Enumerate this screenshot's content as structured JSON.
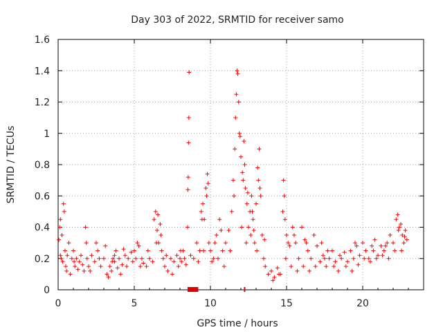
{
  "chart_data": {
    "type": "scatter",
    "title": "Day 303 of 2022, SRMTID for receiver samo",
    "xlabel": "GPS time / hours",
    "ylabel": "SRMTID / TECUs",
    "xlim": [
      0,
      24
    ],
    "ylim": [
      0,
      1.6
    ],
    "x_ticks": [
      0,
      5,
      10,
      15,
      20
    ],
    "x_tick_labels": [
      "0",
      "5",
      "10",
      "15",
      "20"
    ],
    "y_ticks": [
      0,
      0.2,
      0.4,
      0.6,
      0.8,
      1.0,
      1.2,
      1.4,
      1.6
    ],
    "y_tick_labels": [
      "0",
      "0.2",
      "0.4",
      "0.6",
      "0.8",
      "1",
      "1.2",
      "1.4",
      "1.6"
    ],
    "grid": true,
    "marker": "+",
    "marker_color": "#ff0000",
    "series": [
      {
        "name": "SRMTID",
        "points": [
          [
            0.05,
            0.32
          ],
          [
            0.1,
            0.4
          ],
          [
            0.15,
            0.45
          ],
          [
            0.2,
            0.2
          ],
          [
            0.25,
            0.35
          ],
          [
            0.3,
            0.18
          ],
          [
            0.35,
            0.55
          ],
          [
            0.4,
            0.5
          ],
          [
            0.45,
            0.25
          ],
          [
            0.5,
            0.15
          ],
          [
            0.6,
            0.22
          ],
          [
            0.7,
            0.3
          ],
          [
            0.8,
            0.1
          ],
          [
            0.9,
            0.2
          ],
          [
            1.0,
            0.25
          ],
          [
            1.1,
            0.15
          ],
          [
            1.2,
            0.2
          ],
          [
            1.3,
            0.13
          ],
          [
            1.4,
            0.18
          ],
          [
            1.5,
            0.22
          ],
          [
            1.6,
            0.16
          ],
          [
            1.7,
            0.12
          ],
          [
            1.8,
            0.4
          ],
          [
            1.85,
            0.3
          ],
          [
            1.9,
            0.2
          ],
          [
            2.0,
            0.15
          ],
          [
            2.2,
            0.22
          ],
          [
            2.4,
            0.18
          ],
          [
            2.6,
            0.25
          ],
          [
            2.8,
            0.15
          ],
          [
            3.0,
            0.2
          ],
          [
            3.1,
            0.28
          ],
          [
            3.2,
            0.1
          ],
          [
            3.3,
            0.08
          ],
          [
            3.4,
            0.15
          ],
          [
            3.5,
            0.12
          ],
          [
            3.6,
            0.2
          ],
          [
            3.7,
            0.18
          ],
          [
            3.8,
            0.25
          ],
          [
            3.9,
            0.14
          ],
          [
            4.0,
            0.2
          ],
          [
            4.2,
            0.16
          ],
          [
            4.4,
            0.22
          ],
          [
            4.6,
            0.2
          ],
          [
            4.8,
            0.24
          ],
          [
            5.0,
            0.25
          ],
          [
            5.2,
            0.3
          ],
          [
            5.3,
            0.28
          ],
          [
            5.4,
            0.15
          ],
          [
            5.6,
            0.17
          ],
          [
            5.8,
            0.15
          ],
          [
            6.0,
            0.2
          ],
          [
            6.2,
            0.18
          ],
          [
            6.3,
            0.45
          ],
          [
            6.4,
            0.5
          ],
          [
            6.5,
            0.38
          ],
          [
            6.6,
            0.3
          ],
          [
            6.7,
            0.42
          ],
          [
            6.8,
            0.25
          ],
          [
            6.9,
            0.2
          ],
          [
            7.0,
            0.15
          ],
          [
            7.2,
            0.12
          ],
          [
            7.4,
            0.2
          ],
          [
            7.6,
            0.18
          ],
          [
            7.8,
            0.22
          ],
          [
            8.0,
            0.2
          ],
          [
            8.2,
            0.25
          ],
          [
            8.3,
            0.2
          ],
          [
            8.4,
            0.16
          ],
          [
            8.5,
            0.4
          ],
          [
            8.52,
            0.64
          ],
          [
            8.54,
            0.72
          ],
          [
            8.56,
            0.94
          ],
          [
            8.58,
            1.1
          ],
          [
            8.6,
            1.39
          ],
          [
            8.7,
            0.22
          ],
          [
            8.9,
            0.2
          ],
          [
            9.1,
            0.3
          ],
          [
            9.3,
            0.25
          ],
          [
            9.4,
            0.5
          ],
          [
            9.5,
            0.55
          ],
          [
            9.6,
            0.45
          ],
          [
            9.7,
            0.65
          ],
          [
            9.8,
            0.74
          ],
          [
            9.9,
            0.3
          ],
          [
            10.0,
            0.25
          ],
          [
            10.2,
            0.2
          ],
          [
            10.4,
            0.35
          ],
          [
            10.6,
            0.45
          ],
          [
            10.8,
            0.25
          ],
          [
            11.0,
            0.3
          ],
          [
            11.2,
            0.38
          ],
          [
            11.4,
            0.5
          ],
          [
            11.5,
            0.7
          ],
          [
            11.6,
            0.9
          ],
          [
            11.65,
            1.1
          ],
          [
            11.7,
            1.25
          ],
          [
            11.75,
            1.4
          ],
          [
            11.8,
            1.38
          ],
          [
            11.85,
            1.2
          ],
          [
            11.9,
            1.0
          ],
          [
            12.0,
            0.85
          ],
          [
            12.1,
            0.75
          ],
          [
            12.2,
            0.95
          ],
          [
            12.3,
            0.65
          ],
          [
            12.4,
            0.55
          ],
          [
            12.5,
            0.4
          ],
          [
            12.6,
            0.5
          ],
          [
            12.7,
            0.6
          ],
          [
            12.8,
            0.45
          ],
          [
            12.9,
            0.3
          ],
          [
            13.0,
            0.55
          ],
          [
            13.1,
            0.78
          ],
          [
            13.2,
            0.9
          ],
          [
            13.3,
            0.6
          ],
          [
            13.4,
            0.35
          ],
          [
            13.5,
            0.2
          ],
          [
            13.6,
            0.15
          ],
          [
            13.8,
            0.1
          ],
          [
            14.0,
            0.12
          ],
          [
            14.2,
            0.08
          ],
          [
            14.4,
            0.14
          ],
          [
            14.6,
            0.1
          ],
          [
            14.8,
            0.7
          ],
          [
            14.85,
            0.6
          ],
          [
            14.9,
            0.45
          ],
          [
            15.0,
            0.35
          ],
          [
            15.2,
            0.28
          ],
          [
            15.4,
            0.4
          ],
          [
            15.6,
            0.3
          ],
          [
            15.8,
            0.2
          ],
          [
            16.0,
            0.4
          ],
          [
            16.2,
            0.32
          ],
          [
            16.4,
            0.25
          ],
          [
            16.6,
            0.2
          ],
          [
            16.8,
            0.35
          ],
          [
            17.0,
            0.28
          ],
          [
            17.2,
            0.18
          ],
          [
            17.4,
            0.22
          ],
          [
            17.6,
            0.15
          ],
          [
            17.8,
            0.2
          ],
          [
            18.0,
            0.25
          ],
          [
            18.2,
            0.18
          ],
          [
            18.4,
            0.12
          ],
          [
            18.6,
            0.2
          ],
          [
            18.8,
            0.24
          ],
          [
            19.0,
            0.18
          ],
          [
            19.2,
            0.25
          ],
          [
            19.4,
            0.2
          ],
          [
            19.6,
            0.28
          ],
          [
            19.8,
            0.22
          ],
          [
            20.0,
            0.3
          ],
          [
            20.2,
            0.25
          ],
          [
            20.4,
            0.2
          ],
          [
            20.6,
            0.28
          ],
          [
            20.8,
            0.32
          ],
          [
            21.0,
            0.22
          ],
          [
            21.2,
            0.28
          ],
          [
            21.4,
            0.25
          ],
          [
            21.6,
            0.3
          ],
          [
            21.8,
            0.35
          ],
          [
            22.0,
            0.3
          ],
          [
            22.2,
            0.45
          ],
          [
            22.3,
            0.48
          ],
          [
            22.4,
            0.4
          ],
          [
            22.5,
            0.42
          ],
          [
            22.6,
            0.35
          ],
          [
            22.7,
            0.3
          ],
          [
            22.8,
            0.38
          ],
          [
            22.9,
            0.32
          ],
          [
            0.15,
            0.22
          ],
          [
            0.55,
            0.12
          ],
          [
            1.05,
            0.18
          ],
          [
            2.1,
            0.12
          ],
          [
            2.7,
            0.2
          ],
          [
            3.55,
            0.18
          ],
          [
            4.1,
            0.1
          ],
          [
            4.5,
            0.15
          ],
          [
            4.9,
            0.18
          ],
          [
            5.1,
            0.2
          ],
          [
            5.5,
            0.2
          ],
          [
            5.9,
            0.25
          ],
          [
            6.45,
            0.3
          ],
          [
            7.1,
            0.22
          ],
          [
            7.5,
            0.1
          ],
          [
            7.9,
            0.15
          ],
          [
            8.1,
            0.18
          ],
          [
            9.2,
            0.18
          ],
          [
            9.55,
            0.25
          ],
          [
            10.1,
            0.18
          ],
          [
            10.5,
            0.2
          ],
          [
            10.9,
            0.15
          ],
          [
            11.3,
            0.25
          ],
          [
            12.05,
            0.4
          ],
          [
            12.35,
            0.3
          ],
          [
            12.65,
            0.35
          ],
          [
            13.05,
            0.25
          ],
          [
            13.55,
            0.32
          ],
          [
            14.1,
            0.06
          ],
          [
            14.5,
            0.1
          ],
          [
            14.95,
            0.2
          ],
          [
            15.3,
            0.15
          ],
          [
            15.7,
            0.12
          ],
          [
            16.1,
            0.15
          ],
          [
            16.5,
            0.12
          ],
          [
            16.9,
            0.15
          ],
          [
            17.3,
            0.3
          ],
          [
            17.7,
            0.25
          ],
          [
            18.1,
            0.15
          ],
          [
            18.5,
            0.22
          ],
          [
            18.9,
            0.15
          ],
          [
            19.3,
            0.12
          ],
          [
            19.7,
            0.16
          ],
          [
            20.1,
            0.2
          ],
          [
            20.5,
            0.18
          ],
          [
            20.9,
            0.2
          ],
          [
            21.3,
            0.22
          ],
          [
            21.7,
            0.2
          ],
          [
            22.1,
            0.25
          ],
          [
            22.55,
            0.25
          ],
          [
            2.5,
            0.3
          ],
          [
            3.7,
            0.22
          ],
          [
            4.3,
            0.26
          ],
          [
            6.55,
            0.48
          ],
          [
            6.75,
            0.35
          ],
          [
            8.05,
            0.25
          ],
          [
            9.45,
            0.45
          ],
          [
            10.3,
            0.3
          ],
          [
            10.7,
            0.38
          ],
          [
            11.55,
            0.6
          ],
          [
            11.95,
            0.98
          ],
          [
            12.15,
            0.7
          ],
          [
            12.45,
            0.62
          ],
          [
            12.75,
            0.5
          ],
          [
            13.15,
            0.7
          ],
          [
            13.25,
            0.65
          ],
          [
            15.1,
            0.3
          ],
          [
            15.5,
            0.35
          ],
          [
            16.3,
            0.3
          ],
          [
            17.5,
            0.2
          ],
          [
            19.5,
            0.3
          ],
          [
            20.7,
            0.25
          ],
          [
            21.5,
            0.28
          ],
          [
            22.35,
            0.38
          ],
          [
            22.75,
            0.34
          ],
          [
            9.75,
            0.6
          ],
          [
            9.85,
            0.68
          ],
          [
            12.25,
            0.8
          ],
          [
            12.85,
            0.38
          ],
          [
            14.75,
            0.5
          ]
        ]
      }
    ],
    "gap_segments": [
      [
        8.5,
        9.2
      ],
      [
        12.2,
        12.25
      ]
    ]
  }
}
